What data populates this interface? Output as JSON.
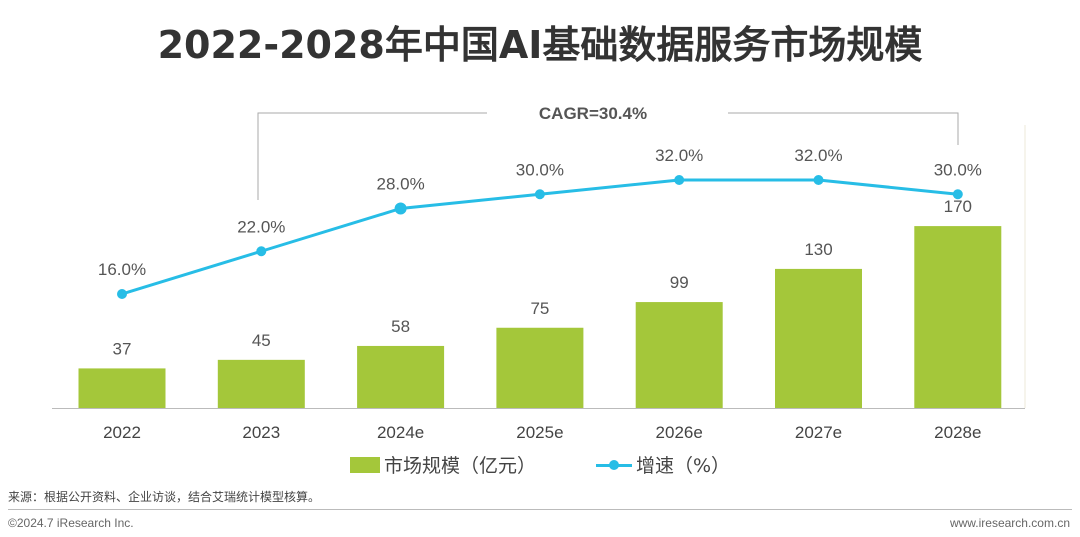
{
  "chart_data": {
    "type": "bar+line",
    "title": "2022-2028年中国AI基础数据服务市场规模",
    "categories": [
      "2022",
      "2023",
      "2024e",
      "2025e",
      "2026e",
      "2027e",
      "2028e"
    ],
    "series": [
      {
        "name": "市场规模（亿元）",
        "type": "bar",
        "color": "#a4c73a",
        "values": [
          37,
          45,
          58,
          75,
          99,
          130,
          170
        ],
        "labels": [
          "37",
          "45",
          "58",
          "75",
          "99",
          "130",
          "170"
        ]
      },
      {
        "name": "增速（%）",
        "type": "line",
        "color": "#27bde6",
        "values": [
          16.0,
          22.0,
          28.0,
          30.0,
          32.0,
          32.0,
          30.0
        ],
        "labels": [
          "16.0%",
          "22.0%",
          "28.0%",
          "30.0%",
          "32.0%",
          "32.0%",
          "30.0%"
        ]
      }
    ],
    "annotation": "CAGR=30.4%",
    "grid": false,
    "legend_placement": "bottom"
  },
  "footer": {
    "source": "来源：根据公开资料、企业访谈，结合艾瑞统计模型核算。",
    "copyright": "©2024.7 iResearch Inc.",
    "website": "www.iresearch.com.cn"
  }
}
